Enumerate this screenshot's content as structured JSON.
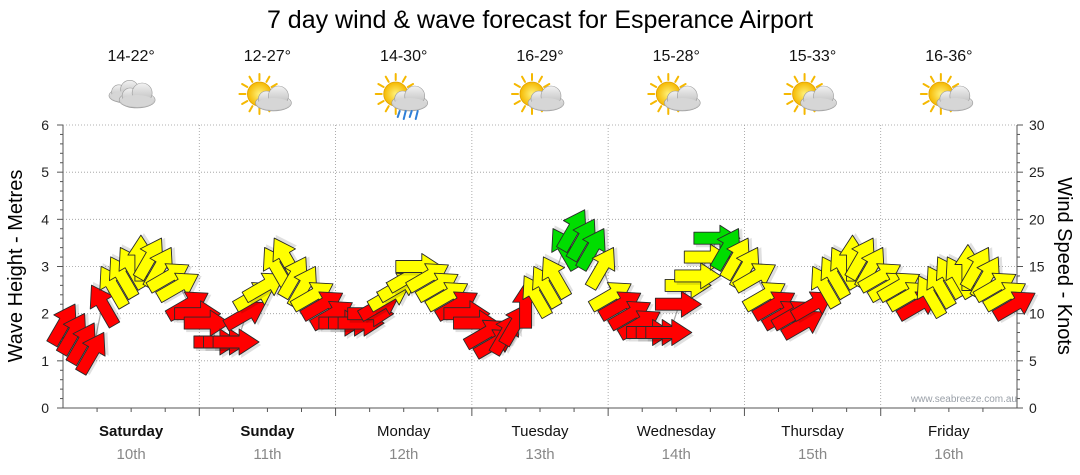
{
  "chart_data": {
    "type": "line",
    "title": "7 day wind & wave forecast for Esperance Airport",
    "ylabel_left": "Wave Height - Metres",
    "ylabel_right": "Wind Speed - Knots",
    "ylim_left": [
      0,
      6
    ],
    "ylim_right": [
      0,
      30
    ],
    "yticks_left": [
      "0",
      "1",
      "2",
      "3",
      "4",
      "5",
      "6"
    ],
    "yticks_right": [
      "0",
      "5",
      "10",
      "15",
      "20",
      "25",
      "30"
    ],
    "watermark": "www.seabreeze.com.au",
    "days": [
      {
        "name": "Saturday",
        "date": "10th",
        "bold": true,
        "temp": "14-22°",
        "weather": "cloudy"
      },
      {
        "name": "Sunday",
        "date": "11th",
        "bold": true,
        "temp": "12-27°",
        "weather": "partly-cloudy"
      },
      {
        "name": "Monday",
        "date": "12th",
        "bold": false,
        "temp": "14-30°",
        "weather": "sun-rain"
      },
      {
        "name": "Tuesday",
        "date": "13th",
        "bold": false,
        "temp": "16-29°",
        "weather": "partly-cloudy"
      },
      {
        "name": "Wednesday",
        "date": "14th",
        "bold": false,
        "temp": "15-28°",
        "weather": "partly-cloudy"
      },
      {
        "name": "Thursday",
        "date": "15th",
        "bold": false,
        "temp": "15-33°",
        "weather": "partly-cloudy"
      },
      {
        "name": "Friday",
        "date": "16th",
        "bold": false,
        "temp": "16-36°",
        "weather": "partly-cloudy"
      }
    ],
    "colors": {
      "low": "#ff0000",
      "mid": "#ffff00",
      "high": "#00dd00",
      "grid": "#999999"
    },
    "series": [
      {
        "name": "Wind speed (knots)",
        "values": [
          9,
          8,
          7,
          6,
          11,
          13,
          14,
          15,
          16,
          16,
          15,
          14,
          13,
          11,
          10,
          9,
          7,
          7,
          7,
          10,
          12,
          13,
          15,
          16,
          14,
          13,
          12,
          11,
          10,
          9,
          9,
          9,
          10,
          11,
          12,
          13,
          14,
          15,
          14,
          13,
          12,
          11,
          10,
          9,
          8,
          7,
          8,
          9,
          11,
          12,
          13,
          14,
          17,
          19,
          18,
          17,
          15,
          12,
          11,
          10,
          9,
          8,
          8,
          8,
          11,
          13,
          14,
          16,
          18,
          17,
          16,
          15,
          14,
          12,
          11,
          10,
          10,
          9,
          11,
          13,
          14,
          15,
          16,
          16,
          15,
          14,
          13,
          13,
          12,
          11,
          12,
          13,
          14,
          14,
          15,
          15,
          14,
          13,
          12,
          11
        ]
      },
      {
        "name": "Wind direction (deg toward)",
        "values": [
          120,
          120,
          120,
          120,
          60,
          60,
          60,
          60,
          90,
          120,
          120,
          150,
          150,
          150,
          180,
          180,
          180,
          180,
          180,
          150,
          150,
          150,
          60,
          60,
          120,
          120,
          150,
          150,
          150,
          180,
          180,
          180,
          180,
          150,
          150,
          150,
          150,
          180,
          150,
          150,
          150,
          150,
          180,
          180,
          150,
          150,
          120,
          120,
          90,
          60,
          60,
          60,
          60,
          120,
          120,
          120,
          120,
          150,
          150,
          150,
          150,
          180,
          180,
          180,
          180,
          180,
          180,
          180,
          180,
          120,
          120,
          120,
          150,
          150,
          150,
          150,
          150,
          150,
          150,
          60,
          60,
          60,
          90,
          120,
          120,
          150,
          150,
          150,
          150,
          150,
          60,
          60,
          60,
          60,
          90,
          120,
          120,
          150,
          150,
          150
        ]
      }
    ]
  }
}
